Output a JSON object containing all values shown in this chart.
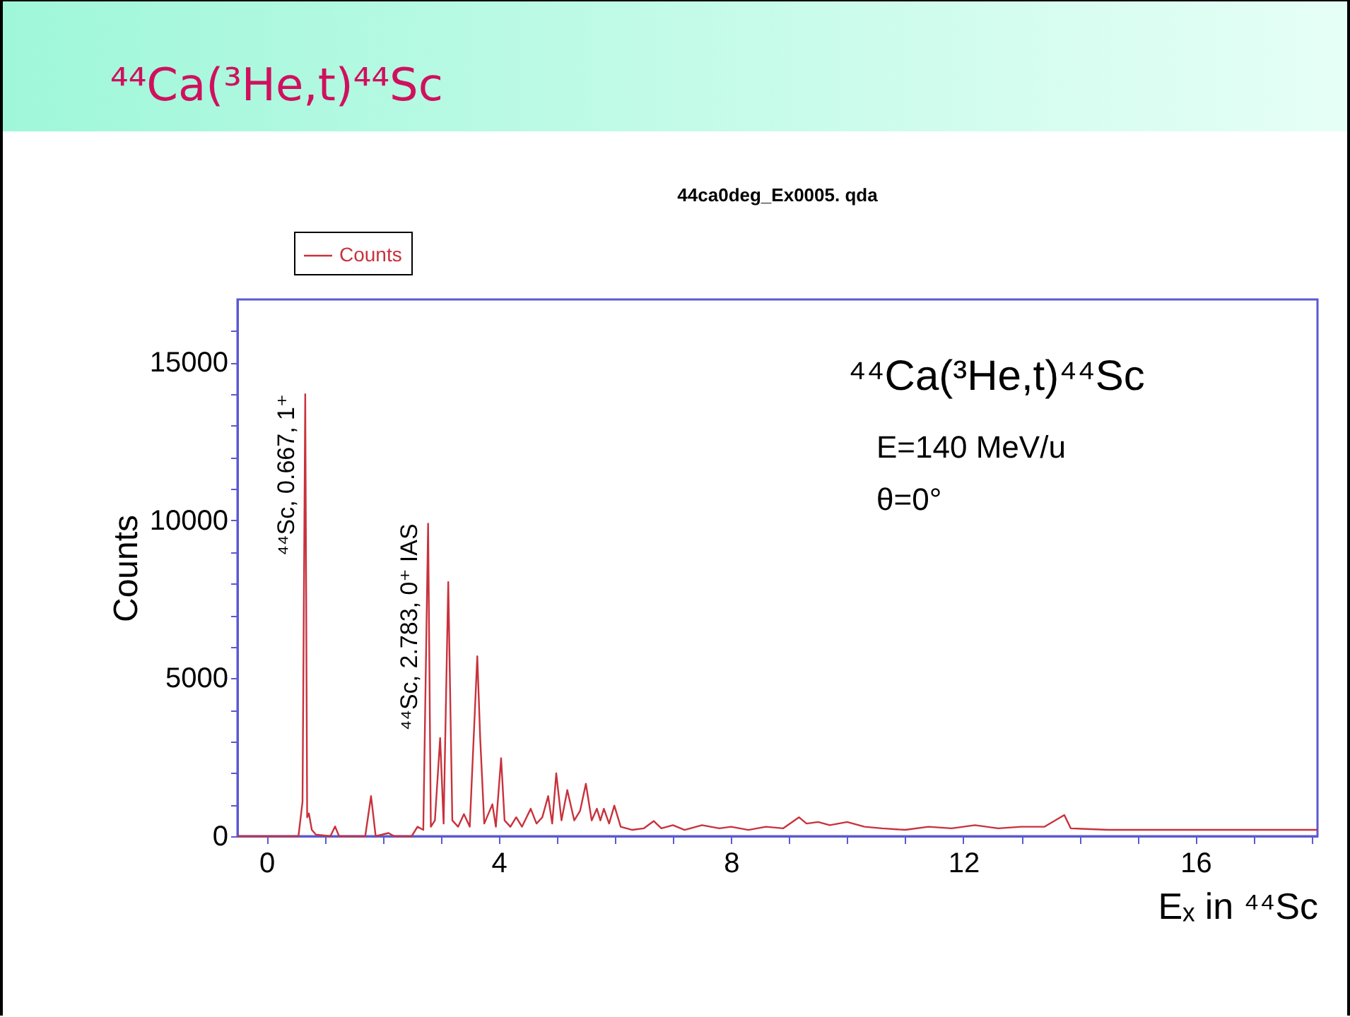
{
  "chart_data": {
    "type": "line",
    "title": "⁴⁴Ca(³He,t)⁴⁴Sc",
    "subtitle": "44ca0deg_Ex0005. qda",
    "xlabel": "Eₓ in ⁴⁴Sc",
    "ylabel": "Counts",
    "xlim": [
      -0.5,
      18.1
    ],
    "ylim": [
      0,
      17000
    ],
    "xticks": [
      0,
      {
        "value": 1,
        "label": null
      },
      {
        "value": 2,
        "label": null
      },
      {
        "value": 3,
        "label": null
      },
      4,
      {
        "value": 5,
        "label": null
      },
      {
        "value": 6,
        "label": null
      },
      {
        "value": 7,
        "label": null
      },
      8,
      {
        "value": 9,
        "label": null
      },
      {
        "value": 10,
        "label": null
      },
      {
        "value": 11,
        "label": null
      },
      12,
      {
        "value": 13,
        "label": null
      },
      {
        "value": 14,
        "label": null
      },
      {
        "value": 15,
        "label": null
      },
      16,
      {
        "value": 17,
        "label": null
      },
      {
        "value": 18,
        "label": null
      }
    ],
    "yticks": [
      0,
      {
        "value": 1000,
        "label": null
      },
      {
        "value": 2000,
        "label": null
      },
      {
        "value": 3000,
        "label": null
      },
      {
        "value": 4000,
        "label": null
      },
      5000,
      {
        "value": 6000,
        "label": null
      },
      {
        "value": 7000,
        "label": null
      },
      {
        "value": 8000,
        "label": null
      },
      {
        "value": 9000,
        "label": null
      },
      10000,
      {
        "value": 11000,
        "label": null
      },
      {
        "value": 12000,
        "label": null
      },
      {
        "value": 13000,
        "label": null
      },
      {
        "value": 14000,
        "label": null
      },
      15000,
      {
        "value": 16000,
        "label": null
      }
    ],
    "legend": "top left",
    "grid": false,
    "annotations": [
      "⁴⁴Ca(³He,t)⁴⁴Sc",
      "E=140 MeV/u",
      "θ=0°",
      {
        "text": "⁴⁴Sc, 0.667, 1⁺",
        "x": 0.667,
        "y": 14000
      },
      {
        "text": "⁴⁴Sc, 2.783, 0⁺ IAS",
        "x": 2.783,
        "y": 9900
      }
    ],
    "series": [
      {
        "name": "Counts",
        "color": "#c8323c",
        "x": [
          -0.5,
          0.55,
          0.62,
          0.667,
          0.7,
          0.73,
          0.78,
          0.85,
          1.1,
          1.18,
          1.25,
          1.7,
          1.8,
          1.88,
          2.1,
          2.2,
          2.5,
          2.6,
          2.7,
          2.783,
          2.83,
          2.9,
          2.99,
          3.05,
          3.13,
          3.2,
          3.3,
          3.4,
          3.5,
          3.63,
          3.68,
          3.75,
          3.89,
          3.95,
          4.04,
          4.1,
          4.2,
          4.3,
          4.4,
          4.55,
          4.65,
          4.75,
          4.85,
          4.92,
          4.99,
          5.08,
          5.18,
          5.3,
          5.4,
          5.5,
          5.6,
          5.69,
          5.75,
          5.81,
          5.9,
          5.99,
          6.1,
          6.3,
          6.5,
          6.67,
          6.8,
          7.0,
          7.2,
          7.5,
          7.8,
          8.0,
          8.3,
          8.6,
          8.9,
          9.17,
          9.3,
          9.5,
          9.7,
          10.0,
          10.3,
          10.6,
          11.0,
          11.4,
          11.8,
          12.2,
          12.6,
          13.0,
          13.4,
          13.74,
          13.85,
          14.5,
          16,
          18.1
        ],
        "values": [
          0,
          0,
          1090,
          14000,
          600,
          720,
          200,
          50,
          0,
          310,
          0,
          0,
          1270,
          0,
          100,
          0,
          0,
          300,
          200,
          9900,
          300,
          500,
          3110,
          400,
          8050,
          500,
          300,
          700,
          300,
          5700,
          3100,
          400,
          1010,
          300,
          2470,
          500,
          300,
          600,
          300,
          870,
          400,
          600,
          1270,
          400,
          1990,
          500,
          1460,
          500,
          800,
          1660,
          500,
          870,
          500,
          870,
          400,
          970,
          300,
          200,
          250,
          480,
          250,
          350,
          200,
          350,
          250,
          300,
          200,
          300,
          250,
          600,
          400,
          450,
          350,
          450,
          300,
          250,
          200,
          300,
          250,
          350,
          250,
          300,
          300,
          670,
          250,
          200,
          200,
          200
        ]
      }
    ]
  }
}
